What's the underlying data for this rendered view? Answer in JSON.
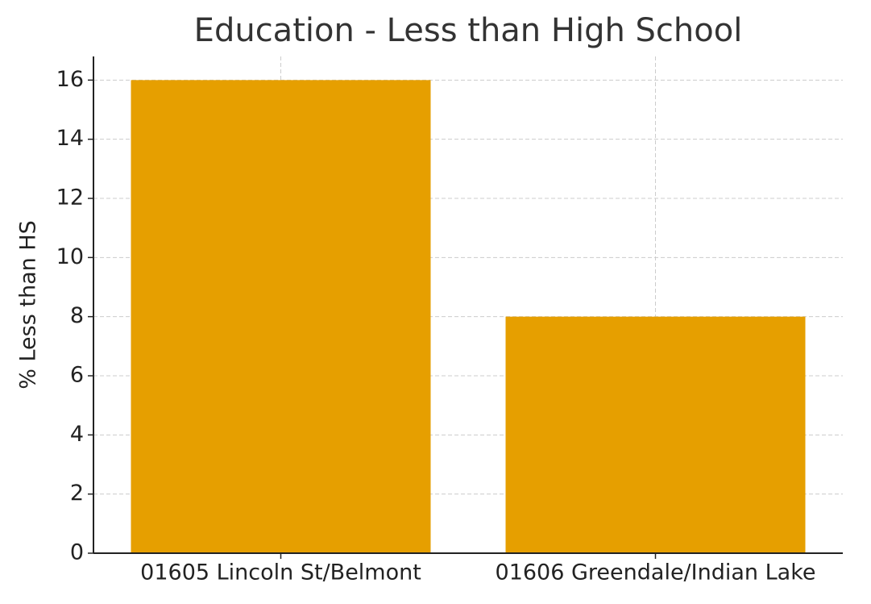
{
  "chart_data": {
    "type": "bar",
    "title": "Education - Less than High School",
    "y_label": "% Less than HS",
    "categories": [
      "01605 Lincoln St/Belmont",
      "01606 Greendale/Indian Lake"
    ],
    "values": [
      16,
      8
    ],
    "color": "#e69f00",
    "ylim": [
      0,
      16.8
    ],
    "yticks": [
      0,
      2,
      4,
      6,
      8,
      10,
      12,
      14,
      16
    ],
    "grid": true
  }
}
